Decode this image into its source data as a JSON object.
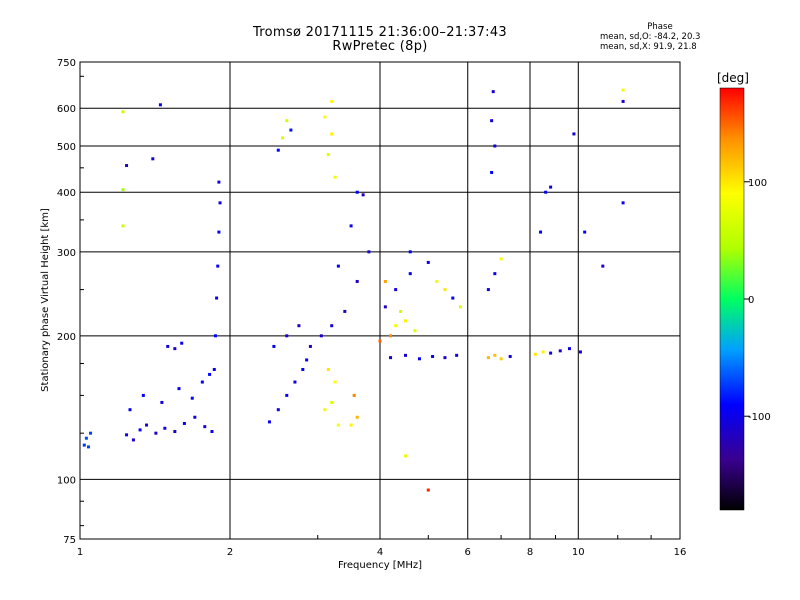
{
  "header": {
    "title_line1": "Tromsø 20171115 21:36:00–21:37:43",
    "title_line2": "RwPretec (8p)",
    "phase_title": "Phase",
    "phase_stat_o": "mean, sd,O: -84.2, 20.3",
    "phase_stat_x": "mean, sd,X:  91.9, 21.8"
  },
  "colorbar": {
    "unit_label": "[deg]",
    "ticks": [
      {
        "value": 100,
        "label": "100"
      },
      {
        "value": 0,
        "label": "0"
      },
      {
        "value": -100,
        "label": "-100"
      }
    ],
    "range": [
      -180,
      180
    ]
  },
  "chart_data": {
    "type": "scatter",
    "xlabel": "Frequency [MHz]",
    "ylabel": "Stationary phase Virtual Height [km]",
    "x_scale": "log",
    "y_scale": "log",
    "xlim": [
      1,
      16
    ],
    "ylim": [
      75,
      750
    ],
    "x_ticks": [
      {
        "value": 1,
        "label": "1"
      },
      {
        "value": 2,
        "label": "2"
      },
      {
        "value": 4,
        "label": "4"
      },
      {
        "value": 6,
        "label": "6"
      },
      {
        "value": 8,
        "label": "8"
      },
      {
        "value": 10,
        "label": "10"
      },
      {
        "value": 16,
        "label": "16"
      }
    ],
    "y_ticks": [
      {
        "value": 75,
        "label": "75"
      },
      {
        "value": 100,
        "label": "100"
      },
      {
        "value": 200,
        "label": "200"
      },
      {
        "value": 300,
        "label": "300"
      },
      {
        "value": 400,
        "label": "400"
      },
      {
        "value": 500,
        "label": "500"
      },
      {
        "value": 600,
        "label": "600"
      },
      {
        "value": 750,
        "label": "750"
      }
    ],
    "grid": true,
    "color_variable": "phase [deg]",
    "points": [
      [
        1.02,
        118,
        -75
      ],
      [
        1.04,
        117,
        -70
      ],
      [
        1.03,
        122,
        -68
      ],
      [
        1.05,
        125,
        -72
      ],
      [
        1.24,
        124,
        -105
      ],
      [
        1.28,
        121,
        -112
      ],
      [
        1.32,
        127,
        -98
      ],
      [
        1.36,
        130,
        -108
      ],
      [
        1.42,
        125,
        -115
      ],
      [
        1.48,
        128,
        -102
      ],
      [
        1.55,
        126,
        -110
      ],
      [
        1.62,
        131,
        -95
      ],
      [
        1.7,
        135,
        -100
      ],
      [
        1.78,
        129,
        -108
      ],
      [
        1.84,
        126,
        -97
      ],
      [
        1.26,
        140,
        -100
      ],
      [
        1.34,
        150,
        -92
      ],
      [
        1.46,
        145,
        -104
      ],
      [
        1.58,
        155,
        -96
      ],
      [
        1.68,
        148,
        -88
      ],
      [
        1.76,
        160,
        -94
      ],
      [
        1.82,
        166,
        -90
      ],
      [
        1.5,
        190,
        -103
      ],
      [
        1.55,
        188,
        -110
      ],
      [
        1.6,
        193,
        -98
      ],
      [
        1.86,
        170,
        -96
      ],
      [
        1.87,
        200,
        -92
      ],
      [
        1.88,
        240,
        -95
      ],
      [
        1.89,
        280,
        -98
      ],
      [
        1.9,
        330,
        -100
      ],
      [
        1.91,
        380,
        -104
      ],
      [
        1.9,
        420,
        -108
      ],
      [
        1.24,
        455,
        -118
      ],
      [
        1.4,
        470,
        -105
      ],
      [
        1.45,
        610,
        -95
      ],
      [
        1.22,
        590,
        60
      ],
      [
        1.22,
        405,
        40
      ],
      [
        1.22,
        340,
        60
      ],
      [
        2.5,
        490,
        -90
      ],
      [
        2.55,
        520,
        70
      ],
      [
        2.6,
        565,
        65
      ],
      [
        2.65,
        540,
        -85
      ],
      [
        2.4,
        132,
        -98
      ],
      [
        2.5,
        140,
        -105
      ],
      [
        2.6,
        150,
        -95
      ],
      [
        2.7,
        160,
        -100
      ],
      [
        2.8,
        170,
        -90
      ],
      [
        2.9,
        190,
        -112
      ],
      [
        2.45,
        190,
        -95
      ],
      [
        2.6,
        200,
        -108
      ],
      [
        2.75,
        210,
        -115
      ],
      [
        2.85,
        178,
        -102
      ],
      [
        3.05,
        200,
        -110
      ],
      [
        3.2,
        210,
        -105
      ],
      [
        3.4,
        225,
        -118
      ],
      [
        3.6,
        260,
        -112
      ],
      [
        3.8,
        300,
        -108
      ],
      [
        3.3,
        280,
        -95
      ],
      [
        3.5,
        340,
        -100
      ],
      [
        3.7,
        395,
        -115
      ],
      [
        3.6,
        400,
        -90
      ],
      [
        3.1,
        140,
        80
      ],
      [
        3.2,
        145,
        70
      ],
      [
        3.25,
        160,
        90
      ],
      [
        3.3,
        130,
        85
      ],
      [
        3.15,
        170,
        100
      ],
      [
        3.5,
        130,
        95
      ],
      [
        3.6,
        135,
        120
      ],
      [
        3.55,
        150,
        140
      ],
      [
        3.15,
        480,
        70
      ],
      [
        3.2,
        530,
        95
      ],
      [
        3.1,
        575,
        85
      ],
      [
        3.25,
        430,
        80
      ],
      [
        3.2,
        620,
        92
      ],
      [
        4.2,
        180,
        -100
      ],
      [
        4.5,
        182,
        -108
      ],
      [
        4.8,
        179,
        -95
      ],
      [
        5.1,
        181,
        -104
      ],
      [
        5.4,
        180,
        -112
      ],
      [
        5.7,
        182,
        -98
      ],
      [
        4.3,
        210,
        85
      ],
      [
        4.5,
        215,
        95
      ],
      [
        4.7,
        205,
        70
      ],
      [
        4.4,
        225,
        60
      ],
      [
        4.1,
        230,
        -115
      ],
      [
        4.3,
        250,
        -105
      ],
      [
        4.6,
        270,
        -98
      ],
      [
        5.2,
        260,
        80
      ],
      [
        5.4,
        250,
        100
      ],
      [
        5.6,
        240,
        -95
      ],
      [
        5.8,
        230,
        70
      ],
      [
        4.0,
        195,
        150
      ],
      [
        4.2,
        200,
        140
      ],
      [
        4.1,
        260,
        130
      ],
      [
        4.6,
        300,
        -90
      ],
      [
        5.0,
        285,
        -100
      ],
      [
        6.6,
        180,
        120
      ],
      [
        6.8,
        182,
        115
      ],
      [
        7.0,
        179,
        110
      ],
      [
        7.3,
        181,
        -105
      ],
      [
        8.2,
        183,
        100
      ],
      [
        8.5,
        185,
        95
      ],
      [
        8.8,
        184,
        -100
      ],
      [
        9.2,
        186,
        -110
      ],
      [
        9.6,
        188,
        -98
      ],
      [
        6.6,
        250,
        -105
      ],
      [
        6.8,
        270,
        -95
      ],
      [
        7.0,
        290,
        85
      ],
      [
        6.7,
        440,
        -90
      ],
      [
        6.8,
        500,
        -100
      ],
      [
        6.75,
        650,
        -110
      ],
      [
        6.7,
        565,
        -105
      ],
      [
        8.6,
        400,
        -95
      ],
      [
        8.8,
        410,
        -100
      ],
      [
        8.4,
        330,
        -90
      ],
      [
        9.8,
        530,
        -105
      ],
      [
        10.3,
        330,
        -98
      ],
      [
        10.1,
        185,
        -100
      ],
      [
        12.3,
        620,
        -108
      ],
      [
        12.3,
        655,
        80
      ],
      [
        12.3,
        380,
        -100
      ],
      [
        11.2,
        280,
        -110
      ],
      [
        4.5,
        112,
        80
      ],
      [
        5.0,
        95,
        170
      ]
    ]
  }
}
